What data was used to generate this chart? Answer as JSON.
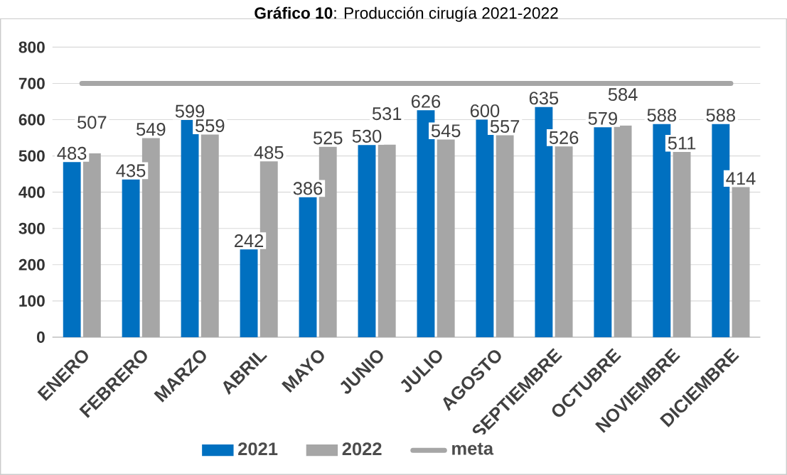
{
  "chart_data": {
    "type": "bar",
    "title": "**Gráfico 10**: Producción cirugía 2021-2022",
    "categories": [
      "ENERO",
      "FEBRERO",
      "MARZO",
      "ABRIL",
      "MAYO",
      "JUNIO",
      "JULIO",
      "AGOSTO",
      "SEPTIEMBRE",
      "OCTUBRE",
      "NOVIEMBRE",
      "DICIEMBRE"
    ],
    "series": [
      {
        "name": "2021",
        "color": "#0070c0",
        "values": [
          483,
          435,
          599,
          242,
          386,
          530,
          626,
          600,
          635,
          579,
          588,
          588
        ],
        "value_labels": [
          "483",
          "435",
          "599",
          "242",
          "386",
          "530",
          "626",
          "600",
          "635",
          "579",
          "588",
          "588"
        ]
      },
      {
        "name": "2022",
        "color": "#a6a6a6",
        "values": [
          507,
          549,
          559,
          485,
          525,
          531,
          545,
          557,
          526,
          584,
          511,
          414
        ],
        "value_labels": [
          "507",
          "549",
          "559",
          "485",
          "525",
          "531",
          "545",
          "557",
          "526",
          "584",
          "511",
          "414"
        ]
      },
      {
        "name": "meta",
        "type": "line",
        "color": "#a6a6a6",
        "values": [
          700,
          700,
          700,
          700,
          700,
          700,
          700,
          700,
          700,
          700,
          700,
          700
        ]
      }
    ],
    "ylim": [
      0,
      800
    ],
    "yticks": [
      0,
      100,
      200,
      300,
      400,
      500,
      600,
      700,
      800
    ],
    "grid": "y",
    "legend": "bottom"
  }
}
